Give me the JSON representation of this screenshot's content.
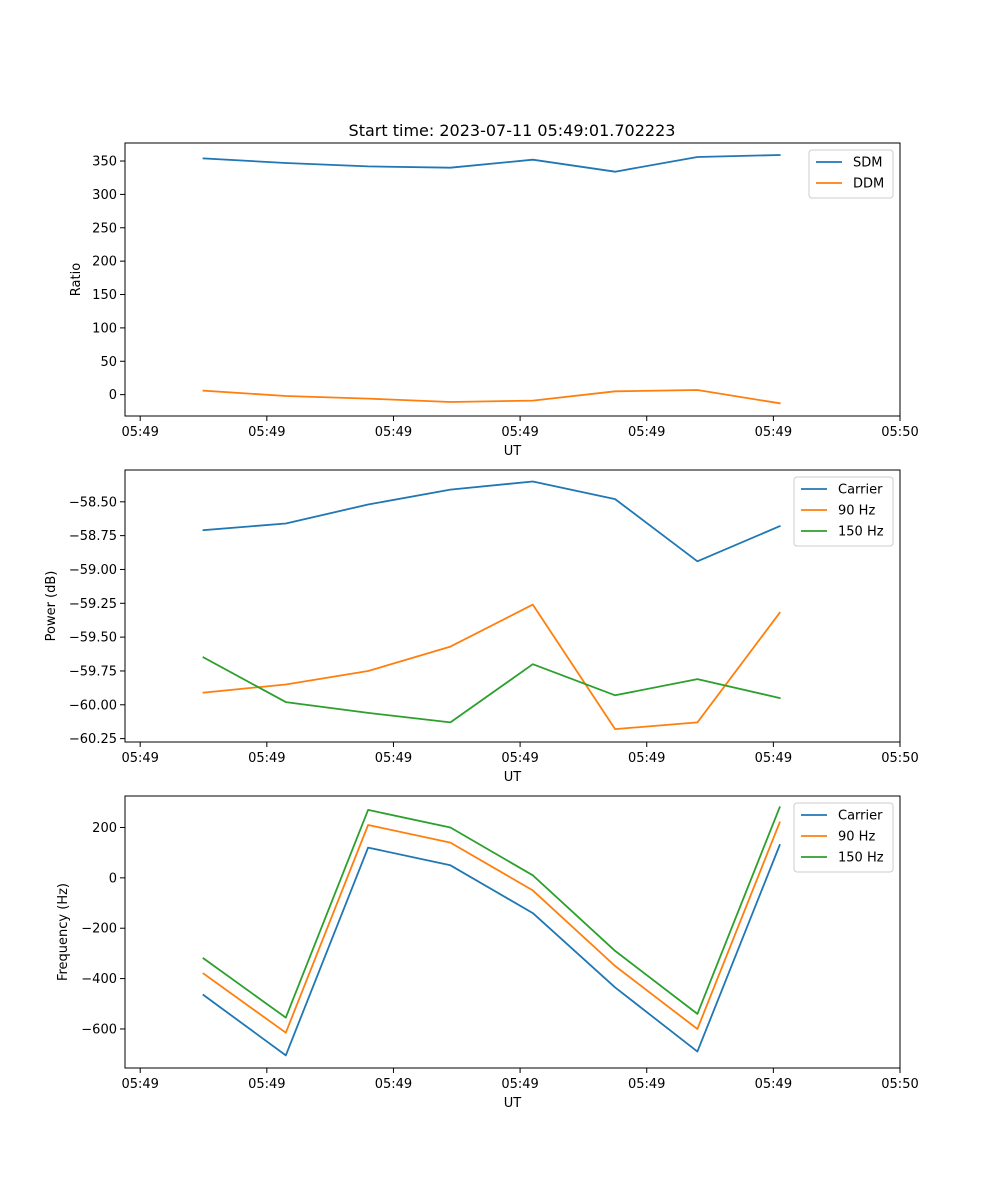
{
  "figure_title": "Start time: 2023-07-11 05:49:01.702223",
  "chart_data": [
    {
      "type": "line",
      "title": "Start time: 2023-07-11 05:49:01.702223",
      "xlabel": "UT",
      "ylabel": "Ratio",
      "x_tick_labels": [
        "05:49",
        "05:49",
        "05:49",
        "05:49",
        "05:49",
        "05:49",
        "05:50"
      ],
      "x_tick_values": [
        0,
        1,
        2,
        3,
        4,
        5,
        6
      ],
      "xlim": [
        -0.12,
        6.0
      ],
      "y_ticks": [
        0,
        50,
        100,
        150,
        200,
        250,
        300,
        350
      ],
      "y_tick_labels": [
        "0",
        "50",
        "100",
        "150",
        "200",
        "250",
        "300",
        "350"
      ],
      "ylim": [
        -32,
        377
      ],
      "legend_position": "upper right",
      "x": [
        0.5,
        1.15,
        1.8,
        2.45,
        3.1,
        3.75,
        4.4,
        5.05
      ],
      "series": [
        {
          "name": "SDM",
          "color": "#1f77b4",
          "values": [
            354,
            347,
            342,
            340,
            352,
            334,
            356,
            359
          ]
        },
        {
          "name": "DDM",
          "color": "#ff7f0e",
          "values": [
            6,
            -2,
            -6,
            -11,
            -9,
            5,
            7,
            -13
          ]
        }
      ]
    },
    {
      "type": "line",
      "title": "",
      "xlabel": "UT",
      "ylabel": "Power (dB)",
      "x_tick_labels": [
        "05:49",
        "05:49",
        "05:49",
        "05:49",
        "05:49",
        "05:49",
        "05:50"
      ],
      "x_tick_values": [
        0,
        1,
        2,
        3,
        4,
        5,
        6
      ],
      "xlim": [
        -0.12,
        6.0
      ],
      "y_ticks": [
        -60.25,
        -60.0,
        -59.75,
        -59.5,
        -59.25,
        -59.0,
        -58.75,
        -58.5
      ],
      "y_tick_labels": [
        "−60.25",
        "−60.00",
        "−59.75",
        "−59.50",
        "−59.25",
        "−59.00",
        "−58.75",
        "−58.50"
      ],
      "ylim": [
        -60.275,
        -58.265
      ],
      "legend_position": "upper right",
      "x": [
        0.5,
        1.15,
        1.8,
        2.45,
        3.1,
        3.75,
        4.4,
        5.05
      ],
      "series": [
        {
          "name": "Carrier",
          "color": "#1f77b4",
          "values": [
            -58.71,
            -58.66,
            -58.52,
            -58.41,
            -58.35,
            -58.48,
            -58.94,
            -58.68
          ]
        },
        {
          "name": "90 Hz",
          "color": "#ff7f0e",
          "values": [
            -59.91,
            -59.85,
            -59.75,
            -59.57,
            -59.26,
            -60.18,
            -60.13,
            -59.32
          ]
        },
        {
          "name": "150 Hz",
          "color": "#2ca02c",
          "values": [
            -59.65,
            -59.98,
            -60.06,
            -60.13,
            -59.7,
            -59.93,
            -59.81,
            -59.95
          ]
        }
      ]
    },
    {
      "type": "line",
      "title": "",
      "xlabel": "UT",
      "ylabel": "Frequency (Hz)",
      "x_tick_labels": [
        "05:49",
        "05:49",
        "05:49",
        "05:49",
        "05:49",
        "05:49",
        "05:50"
      ],
      "x_tick_values": [
        0,
        1,
        2,
        3,
        4,
        5,
        6
      ],
      "xlim": [
        -0.12,
        6.0
      ],
      "y_ticks": [
        -600,
        -400,
        -200,
        0,
        200
      ],
      "y_tick_labels": [
        "−600",
        "−400",
        "−200",
        "0",
        "200"
      ],
      "ylim": [
        -755,
        325
      ],
      "legend_position": "upper right",
      "x": [
        0.5,
        1.15,
        1.8,
        2.45,
        3.1,
        3.75,
        4.4,
        5.05
      ],
      "series": [
        {
          "name": "Carrier",
          "color": "#1f77b4",
          "values": [
            -465,
            -705,
            120,
            50,
            -140,
            -435,
            -690,
            130
          ]
        },
        {
          "name": "90 Hz",
          "color": "#ff7f0e",
          "values": [
            -380,
            -615,
            210,
            140,
            -50,
            -350,
            -600,
            220
          ]
        },
        {
          "name": "150 Hz",
          "color": "#2ca02c",
          "values": [
            -320,
            -555,
            270,
            200,
            10,
            -290,
            -540,
            280
          ]
        }
      ]
    }
  ]
}
